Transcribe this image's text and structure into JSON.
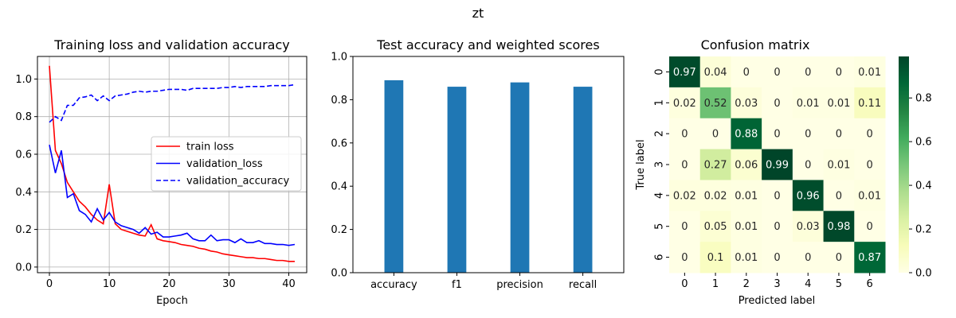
{
  "figure": {
    "suptitle": "zt"
  },
  "chart_data": [
    {
      "type": "line",
      "title": "Training loss and validation accuracy",
      "xlabel": "Epoch",
      "ylabel": "",
      "xlim": [
        -2,
        43
      ],
      "ylim": [
        -0.03,
        1.12
      ],
      "xticks": [
        0,
        10,
        20,
        30,
        40
      ],
      "yticks": [
        0.0,
        0.2,
        0.4,
        0.6,
        0.8,
        1.0
      ],
      "grid": true,
      "legend": "center-right",
      "x": [
        0,
        1,
        2,
        3,
        4,
        5,
        6,
        7,
        8,
        9,
        10,
        11,
        12,
        13,
        14,
        15,
        16,
        17,
        18,
        19,
        20,
        21,
        22,
        23,
        24,
        25,
        26,
        27,
        28,
        29,
        30,
        31,
        32,
        33,
        34,
        35,
        36,
        37,
        38,
        39,
        40,
        41
      ],
      "series": [
        {
          "name": "train loss",
          "color": "#ff0000",
          "dash": "solid",
          "values": [
            1.07,
            0.62,
            0.55,
            0.45,
            0.4,
            0.35,
            0.32,
            0.28,
            0.25,
            0.23,
            0.44,
            0.23,
            0.2,
            0.19,
            0.18,
            0.17,
            0.165,
            0.225,
            0.15,
            0.14,
            0.135,
            0.13,
            0.12,
            0.115,
            0.11,
            0.1,
            0.095,
            0.085,
            0.08,
            0.07,
            0.065,
            0.06,
            0.055,
            0.05,
            0.05,
            0.045,
            0.045,
            0.04,
            0.035,
            0.035,
            0.03,
            0.03
          ]
        },
        {
          "name": "validation_loss",
          "color": "#0000ff",
          "dash": "solid",
          "values": [
            0.65,
            0.5,
            0.62,
            0.37,
            0.39,
            0.3,
            0.28,
            0.24,
            0.31,
            0.25,
            0.29,
            0.24,
            0.22,
            0.21,
            0.2,
            0.18,
            0.21,
            0.175,
            0.185,
            0.16,
            0.16,
            0.165,
            0.17,
            0.18,
            0.15,
            0.14,
            0.14,
            0.17,
            0.14,
            0.145,
            0.145,
            0.13,
            0.15,
            0.13,
            0.13,
            0.14,
            0.125,
            0.125,
            0.12,
            0.12,
            0.115,
            0.12
          ]
        },
        {
          "name": "validation_accuracy",
          "color": "#0000ff",
          "dash": "dashed",
          "values": [
            0.77,
            0.8,
            0.78,
            0.86,
            0.86,
            0.9,
            0.905,
            0.915,
            0.885,
            0.91,
            0.885,
            0.91,
            0.915,
            0.92,
            0.93,
            0.935,
            0.93,
            0.935,
            0.935,
            0.94,
            0.945,
            0.945,
            0.945,
            0.94,
            0.95,
            0.95,
            0.95,
            0.95,
            0.95,
            0.955,
            0.955,
            0.96,
            0.955,
            0.96,
            0.96,
            0.96,
            0.96,
            0.965,
            0.965,
            0.965,
            0.965,
            0.97
          ]
        }
      ]
    },
    {
      "type": "bar",
      "title": "Test accuracy and weighted scores",
      "xlabel": "",
      "ylabel": "",
      "ylim": [
        0,
        1.0
      ],
      "yticks": [
        0.0,
        0.2,
        0.4,
        0.6,
        0.8,
        1.0
      ],
      "color": "#1f77b4",
      "categories": [
        "accuracy",
        "f1",
        "precision",
        "recall"
      ],
      "values": [
        0.89,
        0.86,
        0.88,
        0.86
      ]
    },
    {
      "type": "heatmap",
      "title": "Confusion matrix",
      "xlabel": "Predicted label",
      "ylabel": "True label",
      "colormap": "Greens",
      "xticks": [
        "0",
        "1",
        "2",
        "3",
        "4",
        "5",
        "6"
      ],
      "yticks": [
        "0",
        "1",
        "2",
        "3",
        "4",
        "5",
        "6"
      ],
      "matrix": [
        [
          0.97,
          0.04,
          0,
          0,
          0,
          0,
          0.01
        ],
        [
          0.02,
          0.52,
          0.03,
          0,
          0.01,
          0.01,
          0.11
        ],
        [
          0,
          0,
          0.88,
          0,
          0,
          0,
          0
        ],
        [
          0,
          0.27,
          0.06,
          0.99,
          0,
          0.01,
          0
        ],
        [
          0.02,
          0.02,
          0.01,
          0,
          0.96,
          0,
          0.01
        ],
        [
          0,
          0.05,
          0.01,
          0,
          0.03,
          0.98,
          0
        ],
        [
          0,
          0.1,
          0.01,
          0,
          0,
          0,
          0.87
        ]
      ],
      "colorbar": {
        "range": [
          0,
          0.99
        ],
        "ticks": [
          0.0,
          0.2,
          0.4,
          0.6,
          0.8
        ]
      }
    }
  ]
}
